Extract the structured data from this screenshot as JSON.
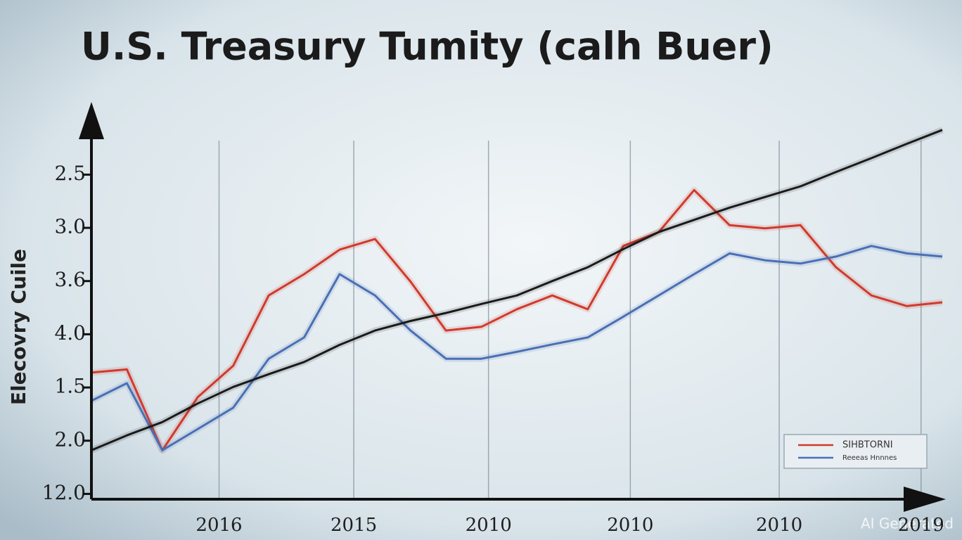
{
  "chart_data": {
    "type": "line",
    "title": "U.S. Treasury Tumity (calh Buer)",
    "y_label": "Elecovry Cuile",
    "watermark": "AI Generated",
    "x": [
      0,
      0.5,
      1,
      1.5,
      2,
      2.5,
      3,
      3.5,
      4,
      4.5,
      5,
      5.5,
      6,
      6.5,
      7,
      7.5,
      8,
      8.5,
      9,
      9.5,
      10,
      10.5,
      11,
      11.5,
      12
    ],
    "xlim": [
      0,
      12
    ],
    "xticks": [
      {
        "value": 1.8,
        "label": "2016"
      },
      {
        "value": 3.7,
        "label": "2015"
      },
      {
        "value": 5.6,
        "label": "2010"
      },
      {
        "value": 7.6,
        "label": "2010"
      },
      {
        "value": 9.7,
        "label": "2010"
      },
      {
        "value": 11.7,
        "label": "2019"
      }
    ],
    "ylim": [
      -0.1,
      7.3
    ],
    "yticks": [
      {
        "value": 0,
        "label": "12.0"
      },
      {
        "value": 1,
        "label": "2.0"
      },
      {
        "value": 2,
        "label": "1.5"
      },
      {
        "value": 3,
        "label": "4.0"
      },
      {
        "value": 4,
        "label": "3.6"
      },
      {
        "value": 5,
        "label": "3.0"
      },
      {
        "value": 6,
        "label": "2.5"
      }
    ],
    "grid": true,
    "legend": "lower right",
    "series": [
      {
        "name": "SIHBTORNI",
        "color": "#d03a2c",
        "values": [
          2.28,
          2.34,
          0.82,
          1.82,
          2.41,
          3.73,
          4.13,
          4.59,
          4.79,
          3.99,
          3.07,
          3.14,
          3.47,
          3.73,
          3.47,
          4.66,
          4.92,
          5.71,
          5.05,
          4.99,
          5.05,
          4.26,
          3.73,
          3.53,
          3.6
        ]
      },
      {
        "name": "Reeeas Hnnnes",
        "color": "#4a6fb5",
        "values": [
          1.75,
          2.08,
          0.82,
          1.22,
          1.62,
          2.54,
          2.94,
          4.13,
          3.73,
          3.07,
          2.54,
          2.54,
          2.67,
          2.81,
          2.94,
          3.33,
          3.73,
          4.13,
          4.52,
          4.39,
          4.33,
          4.46,
          4.66,
          4.52,
          4.46
        ]
      },
      {
        "color": "#1a1a1a",
        "values": [
          0.82,
          1.1,
          1.35,
          1.7,
          2.01,
          2.25,
          2.48,
          2.8,
          3.07,
          3.25,
          3.4,
          3.57,
          3.73,
          4.0,
          4.26,
          4.6,
          4.92,
          5.15,
          5.38,
          5.58,
          5.78,
          6.05,
          6.31,
          6.58,
          6.84
        ]
      }
    ]
  }
}
